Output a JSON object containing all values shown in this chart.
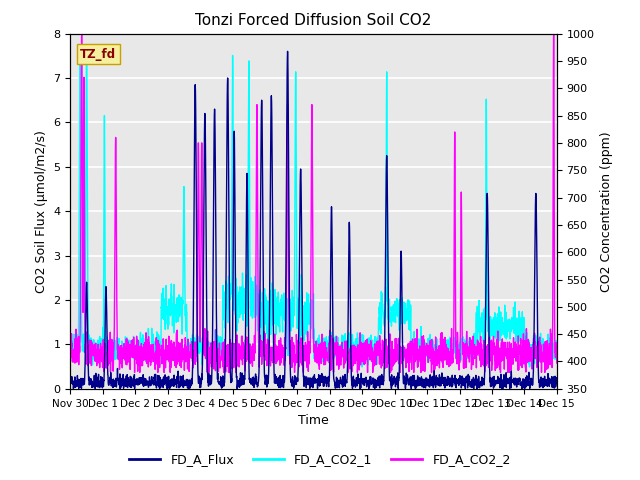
{
  "title": "Tonzi Forced Diffusion Soil CO2",
  "xlabel": "Time",
  "ylabel_left": "CO2 Soil Flux (μmol/m2/s)",
  "ylabel_right": "CO2 Concentration (ppm)",
  "ylim_left": [
    0.0,
    8.0
  ],
  "ylim_right": [
    350,
    1000
  ],
  "legend_label": "TZ_fd",
  "series_labels": [
    "FD_A_Flux",
    "FD_A_CO2_1",
    "FD_A_CO2_2"
  ],
  "series_colors": [
    "#00008B",
    "#00FFFF",
    "#FF00FF"
  ],
  "series_linewidths": [
    1.0,
    1.0,
    1.0
  ],
  "background_color": "#E8E8E8",
  "xtick_labels": [
    "Nov 30",
    "Dec 1",
    "Dec 2",
    "Dec 3",
    "Dec 4",
    "Dec 5",
    "Dec 6",
    "Dec 7",
    "Dec 8",
    "Dec 9",
    "Dec 10",
    "Dec 11",
    "Dec 12",
    "Dec 13",
    "Dec 14",
    "Dec 15"
  ],
  "n_points": 2160,
  "seed": 42,
  "yticks_left": [
    0.0,
    1.0,
    2.0,
    3.0,
    4.0,
    5.0,
    6.0,
    7.0,
    8.0
  ],
  "yticks_right": [
    350,
    400,
    450,
    500,
    550,
    600,
    650,
    700,
    750,
    800,
    850,
    900,
    950,
    1000
  ]
}
